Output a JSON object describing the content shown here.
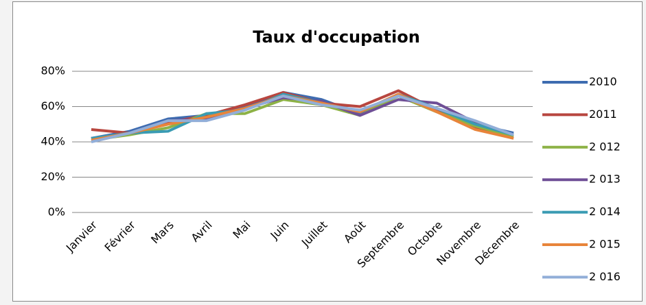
{
  "chart_data": {
    "type": "line",
    "title": "Taux d'occupation",
    "categories": [
      "Janvier",
      "Février",
      "Mars",
      "Avril",
      "Mai",
      "Juin",
      "Juillet",
      "Août",
      "Septembre",
      "Octobre",
      "Novembre",
      "Décembre"
    ],
    "series": [
      {
        "name": "2010",
        "color": "#3e6cb0",
        "values": [
          42,
          46,
          53,
          55,
          60,
          68,
          64,
          56,
          67,
          58,
          50,
          45
        ]
      },
      {
        "name": "2011",
        "color": "#b8463f",
        "values": [
          47,
          45,
          51,
          55,
          61,
          68,
          62,
          60,
          69,
          58,
          48,
          42
        ]
      },
      {
        "name": "2 012",
        "color": "#8db246",
        "values": [
          41,
          44,
          48,
          56,
          56,
          64,
          61,
          55,
          66,
          57,
          49,
          43
        ]
      },
      {
        "name": "2 013",
        "color": "#6f4f96",
        "values": [
          42,
          45,
          52,
          53,
          59,
          65,
          63,
          55,
          64,
          62,
          51,
          44
        ]
      },
      {
        "name": "2 014",
        "color": "#3a9bb3",
        "values": [
          42,
          45,
          46,
          56,
          58,
          67,
          62,
          57,
          67,
          59,
          50,
          44
        ]
      },
      {
        "name": "2 015",
        "color": "#e8843a",
        "values": [
          41,
          45,
          50,
          54,
          59,
          66,
          62,
          57,
          67,
          57,
          47,
          42
        ]
      },
      {
        "name": "2 016",
        "color": "#92aed8",
        "values": [
          40,
          45,
          52,
          52,
          58,
          66,
          61,
          58,
          66,
          59,
          52,
          44
        ]
      }
    ],
    "ylim": [
      0,
      80
    ],
    "yticks": [
      {
        "value": 0,
        "label": "0%"
      },
      {
        "value": 20,
        "label": "20%"
      },
      {
        "value": 40,
        "label": "40%"
      },
      {
        "value": 60,
        "label": "60%"
      },
      {
        "value": 80,
        "label": "80%"
      }
    ],
    "grid": true,
    "legend": "right"
  }
}
